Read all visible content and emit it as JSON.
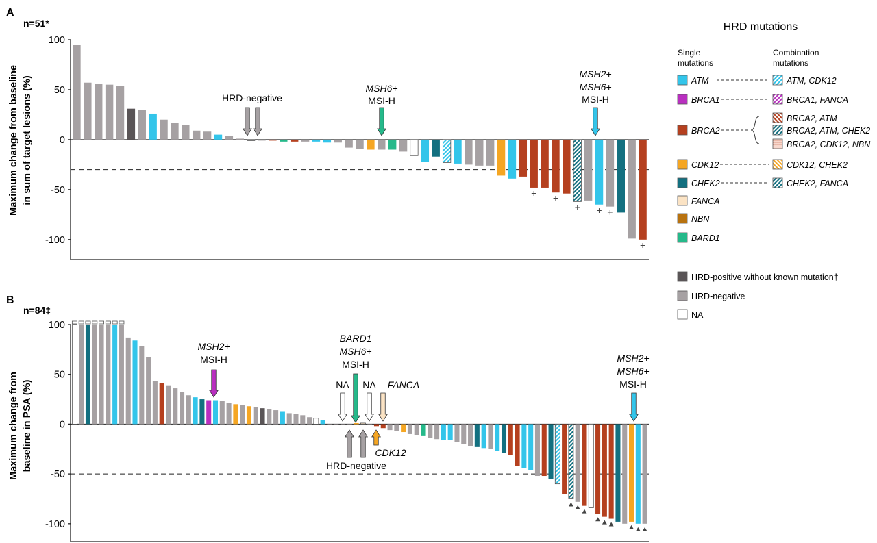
{
  "colors": {
    "ATM": "#33c5ea",
    "BRCA1": "#b92fc0",
    "BRCA2": "#b5401f",
    "CDK12": "#f5a623",
    "CHEK2": "#137080",
    "FANCA": "#fbe3c4",
    "NBN": "#b8720f",
    "BARD1": "#25b98a",
    "HRDpos": "#5a5557",
    "HRDneg": "#a6a1a3",
    "NA": "#ffffff"
  },
  "legend": {
    "title": "HRD mutations",
    "single_header_1": "Single",
    "single_header_2": "mutations",
    "combo_header_1": "Combination",
    "combo_header_2": "mutations",
    "single": [
      {
        "key": "ATM",
        "label": "ATM"
      },
      {
        "key": "BRCA1",
        "label": "BRCA1"
      },
      {
        "key": "BRCA2",
        "label": "BRCA2"
      },
      {
        "key": "CDK12",
        "label": "CDK12"
      },
      {
        "key": "CHEK2",
        "label": "CHEK2"
      },
      {
        "key": "FANCA",
        "label": "FANCA"
      },
      {
        "key": "NBN",
        "label": "NBN"
      },
      {
        "key": "BARD1",
        "label": "BARD1"
      }
    ],
    "combo": [
      {
        "key": "ATM_CDK12",
        "label": "ATM, CDK12"
      },
      {
        "key": "BRCA1_FANCA",
        "label": "BRCA1, FANCA"
      },
      {
        "key": "BRCA2_ATM",
        "label": "BRCA2, ATM"
      },
      {
        "key": "BRCA2_ATM_CHEK2",
        "label": "BRCA2, ATM, CHEK2"
      },
      {
        "key": "BRCA2_CDK12_NBN",
        "label": "BRCA2, CDK12, NBN"
      },
      {
        "key": "CDK12_CHEK2",
        "label": "CDK12, CHEK2"
      },
      {
        "key": "CHEK2_FANCA",
        "label": "CHEK2, FANCA"
      }
    ],
    "other": [
      {
        "key": "HRDpos",
        "label": "HRD-positive without known mutation†"
      },
      {
        "key": "HRDneg",
        "label": "HRD-negative"
      },
      {
        "key": "NA",
        "label": "NA"
      }
    ]
  },
  "chart_data": [
    {
      "type": "bar",
      "panel": "A",
      "n_label": "n=51*",
      "ylabel_line1": "Maximum change from baseline",
      "ylabel_line2": "in sum of target lesions (%)",
      "ylim": [
        -120,
        100
      ],
      "yticks": [
        100,
        50,
        0,
        -50,
        -100
      ],
      "ytick_labels": [
        "100",
        "50",
        "0",
        "-50",
        "-100"
      ],
      "reference_line": -30,
      "values": [
        95,
        57,
        56,
        55,
        54,
        31,
        30,
        26,
        20,
        17,
        15,
        9,
        8,
        5,
        4,
        1,
        0,
        -1,
        -1,
        -2,
        -2,
        -2,
        -2,
        -3,
        -3,
        -8,
        -9,
        -10,
        -10,
        -10,
        -12,
        -16,
        -22,
        -17,
        -23,
        -24,
        -25,
        -26,
        -26,
        -36,
        -39,
        -37,
        -48,
        -48,
        -53,
        -54,
        -62,
        -61,
        -65,
        -67,
        -73,
        -99,
        -100
      ],
      "categories": [
        "HRDneg",
        "HRDneg",
        "HRDneg",
        "HRDneg",
        "HRDneg",
        "HRDpos",
        "HRDneg",
        "ATM",
        "HRDneg",
        "HRDneg",
        "HRDneg",
        "HRDneg",
        "HRDneg",
        "ATM",
        "HRDneg",
        "HRDneg",
        "NA",
        "HRDneg",
        "BRCA2",
        "BARD1",
        "BRCA2",
        "HRDneg",
        "ATM",
        "ATM",
        "HRDneg",
        "HRDneg",
        "HRDneg",
        "CDK12",
        "HRDneg",
        "BARD1",
        "HRDneg",
        "NA",
        "ATM",
        "CHEK2",
        "ATM_CDK12",
        "ATM",
        "HRDneg",
        "HRDneg",
        "HRDneg",
        "CDK12",
        "ATM",
        "BRCA2",
        "BRCA2",
        "BRCA2",
        "BRCA2",
        "BRCA2",
        "BRCA2_ATM_CHEK2",
        "HRDneg",
        "ATM",
        "HRDneg",
        "CHEK2",
        "HRDneg",
        "BRCA2"
      ],
      "plus_markers": [
        42,
        44,
        46,
        48,
        49,
        52
      ],
      "annotations": [
        {
          "text": "HRD-negative"
        },
        {
          "text": "MSH6+"
        },
        {
          "text": "MSI-H"
        },
        {
          "text": "MSH2+"
        },
        {
          "text": "MSH6+"
        },
        {
          "text": "MSI-H"
        }
      ]
    },
    {
      "type": "bar",
      "panel": "B",
      "n_label": "n=84‡",
      "ylabel_line1": "Maximum change from",
      "ylabel_line2": "baseline in PSA (%)",
      "ylim": [
        -118,
        100
      ],
      "yticks": [
        100,
        50,
        0,
        -50,
        -100
      ],
      "ytick_labels": [
        "100",
        "50",
        "0",
        "-50",
        "-100"
      ],
      "reference_line": -50,
      "values": [
        100,
        100,
        100,
        100,
        100,
        100,
        100,
        100,
        87,
        84,
        78,
        67,
        43,
        41,
        39,
        36,
        32,
        29,
        27,
        25,
        24,
        24,
        23,
        21,
        20,
        19,
        18,
        17,
        16,
        15,
        14,
        13,
        11,
        10,
        9,
        7,
        6,
        4,
        0,
        0,
        0,
        0,
        1,
        1,
        0,
        -2,
        -4,
        -6,
        -7,
        -8,
        -10,
        -11,
        -12,
        -14,
        -15,
        -16,
        -16,
        -18,
        -20,
        -22,
        -23,
        -24,
        -25,
        -27,
        -29,
        -31,
        -42,
        -44,
        -46,
        -52,
        -52,
        -55,
        -60,
        -70,
        -75,
        -78,
        -82,
        -84,
        -90,
        -93,
        -95,
        -98,
        -100,
        -98,
        -100,
        -100
      ],
      "categories": [
        "NA",
        "HRDneg",
        "CHEK2",
        "HRDneg",
        "HRDneg",
        "HRDneg",
        "ATM",
        "HRDneg",
        "HRDneg",
        "ATM",
        "HRDneg",
        "HRDneg",
        "HRDneg",
        "BRCA2",
        "HRDneg",
        "HRDneg",
        "HRDneg",
        "HRDneg",
        "ATM",
        "CHEK2",
        "BRCA1",
        "ATM",
        "HRDneg",
        "HRDneg",
        "CDK12",
        "HRDneg",
        "CDK12",
        "HRDneg",
        "HRDpos",
        "HRDneg",
        "HRDneg",
        "ATM",
        "HRDneg",
        "HRDneg",
        "HRDneg",
        "HRDneg",
        "NA",
        "ATM",
        "HRDneg",
        "HRDneg",
        "HRDneg",
        "HRDneg",
        "CDK12",
        "FANCA",
        "HRDneg",
        "BRCA2",
        "BRCA2",
        "HRDneg",
        "HRDneg",
        "CDK12",
        "HRDneg",
        "HRDneg",
        "BARD1",
        "HRDneg",
        "HRDneg",
        "ATM",
        "ATM",
        "HRDneg",
        "HRDneg",
        "HRDneg",
        "CHEK2",
        "ATM",
        "HRDneg",
        "ATM",
        "CHEK2",
        "BRCA2",
        "BRCA2",
        "ATM",
        "ATM",
        "HRDneg",
        "BRCA2",
        "CHEK2",
        "ATM_CDK12",
        "BRCA2",
        "CHEK2_FANCA",
        "HRDneg",
        "BRCA2",
        "NA",
        "BRCA2",
        "BRCA2",
        "BRCA2",
        "CHEK2",
        "HRDneg",
        "CDK12",
        "ATM",
        "HRDneg"
      ],
      "triangle_markers": [
        74,
        75,
        76,
        78,
        79,
        80,
        83,
        84,
        85
      ],
      "annotations": [
        {
          "text": "MSH2+"
        },
        {
          "text": "MSI-H"
        },
        {
          "text": "BARD1"
        },
        {
          "text": "MSH6+"
        },
        {
          "text": "MSI-H"
        },
        {
          "text": "NA"
        },
        {
          "text": "NA"
        },
        {
          "text": "FANCA"
        },
        {
          "text": "CDK12"
        },
        {
          "text": "HRD-negative"
        },
        {
          "text": "MSH2+"
        },
        {
          "text": "MSH6+"
        },
        {
          "text": "MSI-H"
        }
      ]
    }
  ]
}
